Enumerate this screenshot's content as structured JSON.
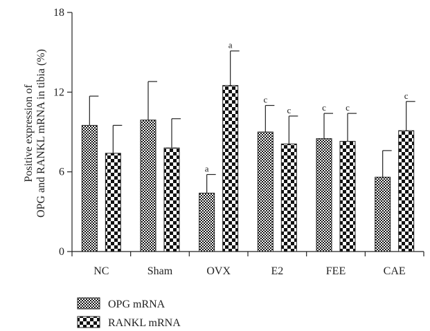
{
  "chart_data": {
    "type": "bar",
    "title": "",
    "xlabel": "",
    "ylabel_lines": [
      "Positive expression of",
      "OPG and RANKL mRNA in tibia (%)"
    ],
    "ylim": [
      0,
      18
    ],
    "yticks": [
      0,
      6,
      12,
      18
    ],
    "categories": [
      "NC",
      "Sham",
      "OVX",
      "E2",
      "FEE",
      "CAE"
    ],
    "series": [
      {
        "name": "OPG mRNA",
        "pattern": "fine-check",
        "values": [
          9.5,
          9.9,
          4.4,
          9.0,
          8.5,
          5.6
        ],
        "errors": [
          2.2,
          2.9,
          1.4,
          2.0,
          1.9,
          2.0
        ],
        "annotations": [
          "",
          "",
          "a",
          "c",
          "c",
          ""
        ]
      },
      {
        "name": "RANKL mRNA",
        "pattern": "coarse-check",
        "values": [
          7.4,
          7.8,
          12.5,
          8.1,
          8.3,
          9.1
        ],
        "errors": [
          2.1,
          2.2,
          2.6,
          2.1,
          2.1,
          2.2
        ],
        "annotations": [
          "",
          "",
          "a",
          "c",
          "c",
          "c"
        ]
      }
    ],
    "legend": {
      "position": "bottom-left"
    },
    "grid": false
  }
}
